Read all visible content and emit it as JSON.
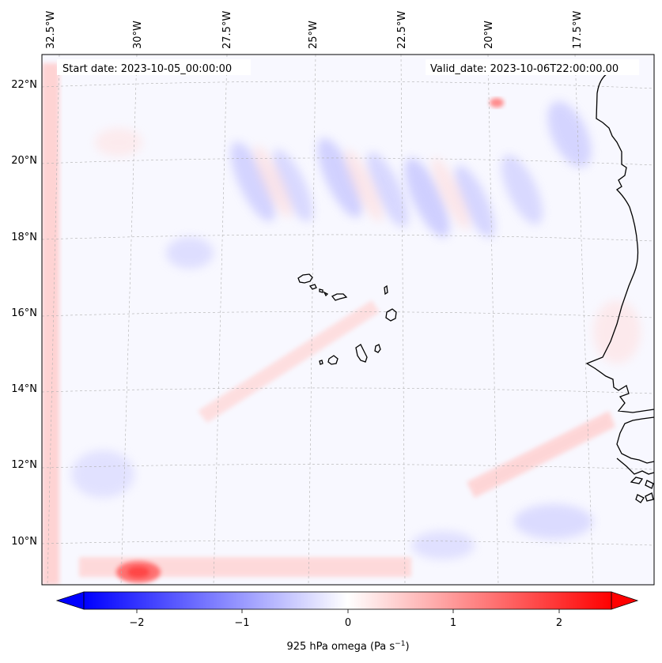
{
  "map": {
    "start_date_label": "Start date: 2023-10-05_00:00:00",
    "valid_date_label": "Valid_date: 2023-10-06T22:00:00.00",
    "lon_labels": [
      "32.5°W",
      "30°W",
      "27.5°W",
      "25°W",
      "22.5°W",
      "20°W",
      "17.5°W"
    ],
    "lat_labels": [
      "22°N",
      "20°N",
      "18°N",
      "16°N",
      "14°N",
      "12°N",
      "10°N"
    ],
    "coastline_color": "#000000",
    "gridline_color": "#b0b0b0"
  },
  "colorbar": {
    "label_main": "925 hPa omega (Pa s",
    "label_exp": "−1",
    "label_close": ")",
    "ticks": [
      "−2",
      "−1",
      "0",
      "1",
      "2"
    ],
    "range": [
      -2.5,
      2.5
    ],
    "cmap": "bwr",
    "extend": "both",
    "low_color": "#0000ff",
    "mid_color": "#ffffff",
    "high_color": "#ff0000"
  }
}
